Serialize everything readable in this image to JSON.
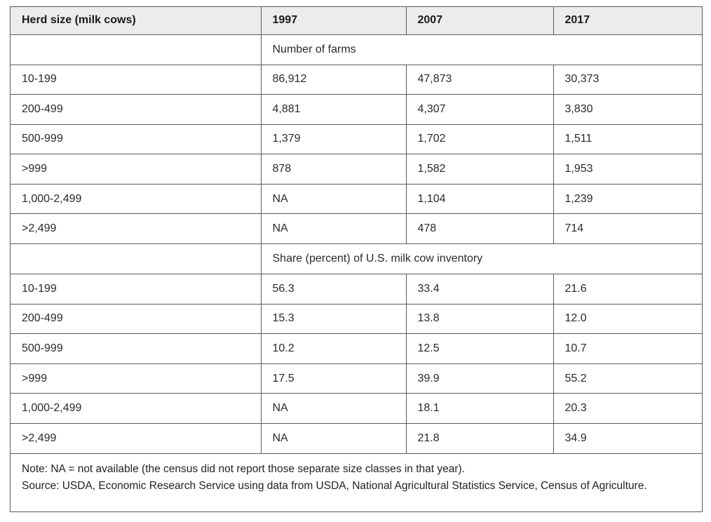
{
  "table": {
    "headers": [
      "Herd size (milk cows)",
      "1997",
      "2007",
      "2017"
    ],
    "sections": [
      {
        "label": "Number of farms",
        "rows": [
          [
            "10-199",
            "86,912",
            "47,873",
            "30,373"
          ],
          [
            "200-499",
            "4,881",
            "4,307",
            "3,830"
          ],
          [
            "500-999",
            "1,379",
            "1,702",
            "1,511"
          ],
          [
            ">999",
            "878",
            "1,582",
            "1,953"
          ],
          [
            "1,000-2,499",
            "NA",
            "1,104",
            "1,239"
          ],
          [
            ">2,499",
            "NA",
            "478",
            "714"
          ]
        ]
      },
      {
        "label": "Share (percent) of U.S. milk cow inventory",
        "rows": [
          [
            "10-199",
            "56.3",
            "33.4",
            "21.6"
          ],
          [
            "200-499",
            "15.3",
            "13.8",
            "12.0"
          ],
          [
            "500-999",
            "10.2",
            "12.5",
            "10.7"
          ],
          [
            ">999",
            "17.5",
            "39.9",
            "55.2"
          ],
          [
            "1,000-2,499",
            "NA",
            "18.1",
            "20.3"
          ],
          [
            ">2,499",
            "NA",
            "21.8",
            "34.9"
          ]
        ]
      }
    ]
  },
  "notes": {
    "note": "Note: NA = not available (the census did not report those separate size classes in that year).",
    "source": "Source: USDA, Economic Research Service using data from USDA, National Agricultural Statistics Service, Census of Agriculture."
  }
}
